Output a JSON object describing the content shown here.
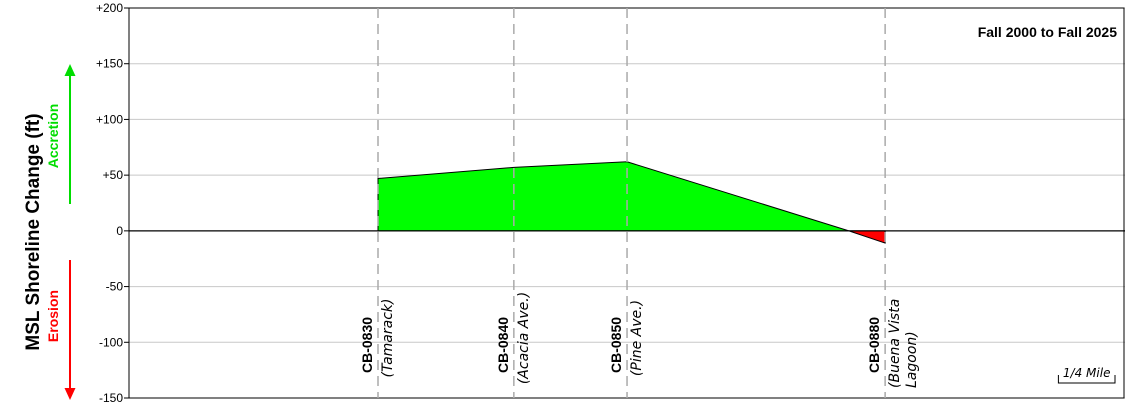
{
  "chart_data": {
    "type": "area",
    "title": "Fall 2000 to Fall 2025",
    "ylabel": "MSL Shoreline Change (ft)",
    "accretion_label": "Accretion",
    "erosion_label": "Erosion",
    "ylim": [
      -150,
      200
    ],
    "ytick_labels": [
      "+200",
      "+150",
      "+100",
      "+50",
      "0",
      "-50",
      "-100",
      "-150"
    ],
    "grid": true,
    "profiles": [
      {
        "id": "CB-0830",
        "location": "(Tamarack)",
        "distance_mi": 0.0,
        "change": 47
      },
      {
        "id": "CB-0840",
        "location": "(Acacia  Ave.)",
        "distance_mi": 0.6,
        "change": 57
      },
      {
        "id": "CB-0850",
        "location": "(Pine  Ave.)",
        "distance_mi": 1.1,
        "change": 62
      },
      {
        "id": "CB-0880",
        "location_lines": [
          "(Buena  Vista",
          "Lagoon)"
        ],
        "distance_mi": 2.24,
        "change": -11
      }
    ],
    "zero_crossing_mi": 2.08,
    "accretion_color": "#00ff00",
    "erosion_color": "#ff0000",
    "scale_bar": {
      "label": "1/4  Mile",
      "length_mi": 0.25
    }
  }
}
